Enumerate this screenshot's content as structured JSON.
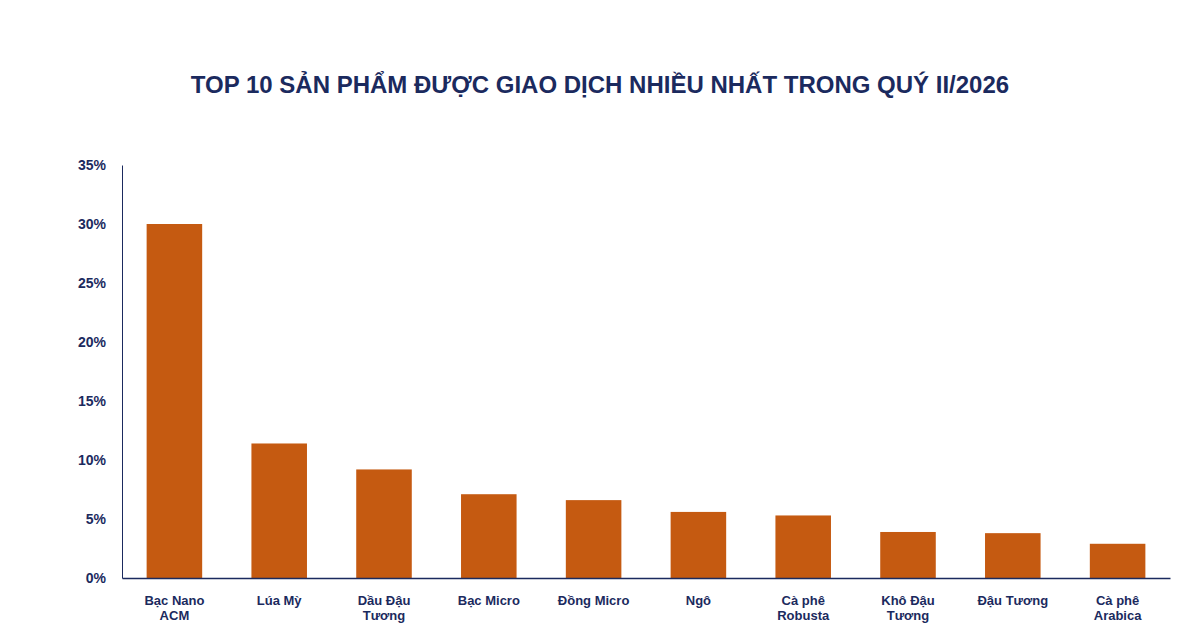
{
  "chart_data": {
    "type": "bar",
    "title": "TOP 10 SẢN PHẨM ĐƯỢC GIAO DỊCH NHIỀU NHẤT TRONG QUÝ II/2026",
    "categories": [
      "Bạc Nano ACM",
      "Lúa Mỳ",
      "Dầu Đậu Tương",
      "Bạc Micro",
      "Đồng Micro",
      "Ngô",
      "Cà phê Robusta",
      "Khô Đậu Tương",
      "Đậu Tương",
      "Cà phê Arabica"
    ],
    "values": [
      30,
      11.4,
      9.2,
      7.1,
      6.6,
      5.6,
      5.3,
      3.9,
      3.8,
      2.9
    ],
    "color": "#c55a11",
    "ylim": [
      0,
      35
    ],
    "yticks": [
      {
        "value": 0,
        "label": "0%"
      },
      {
        "value": 5,
        "label": "5%"
      },
      {
        "value": 10,
        "label": "10%"
      },
      {
        "value": 15,
        "label": "15%"
      },
      {
        "value": 20,
        "label": "20%"
      },
      {
        "value": 25,
        "label": "25%"
      },
      {
        "value": 30,
        "label": "30%"
      },
      {
        "value": 35,
        "label": "35%"
      }
    ],
    "grid": false,
    "data_labels": false
  }
}
